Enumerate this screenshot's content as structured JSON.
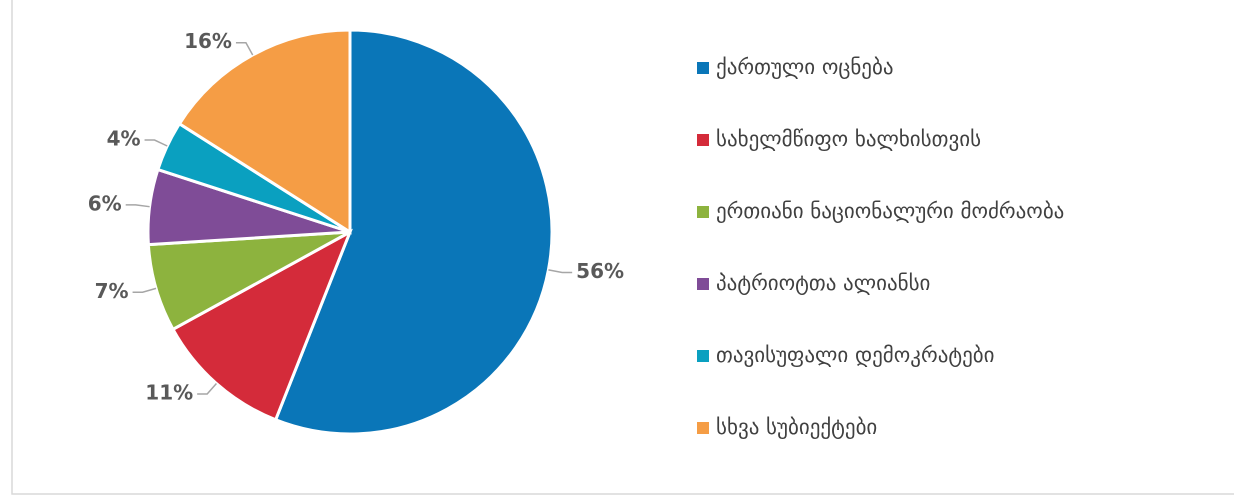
{
  "chart_data": {
    "type": "pie",
    "categories": [
      "ქართული ოცნება",
      "სახელმწიფო ხალხისთვის",
      "ერთიანი ნაციონალური მოძრაობა",
      "პატრიოტთა ალიანსი",
      "თავისუფალი დემოკრატები",
      "სხვა სუბიექტები"
    ],
    "values": [
      56,
      11,
      7,
      6,
      4,
      16
    ],
    "value_labels": [
      "56%",
      "11%",
      "7%",
      "6%",
      "4%",
      "16%"
    ],
    "colors": [
      "#0a76b8",
      "#d42b3a",
      "#8db33e",
      "#7f4c97",
      "#0aa0c0",
      "#f59d45"
    ],
    "legend": "right"
  }
}
